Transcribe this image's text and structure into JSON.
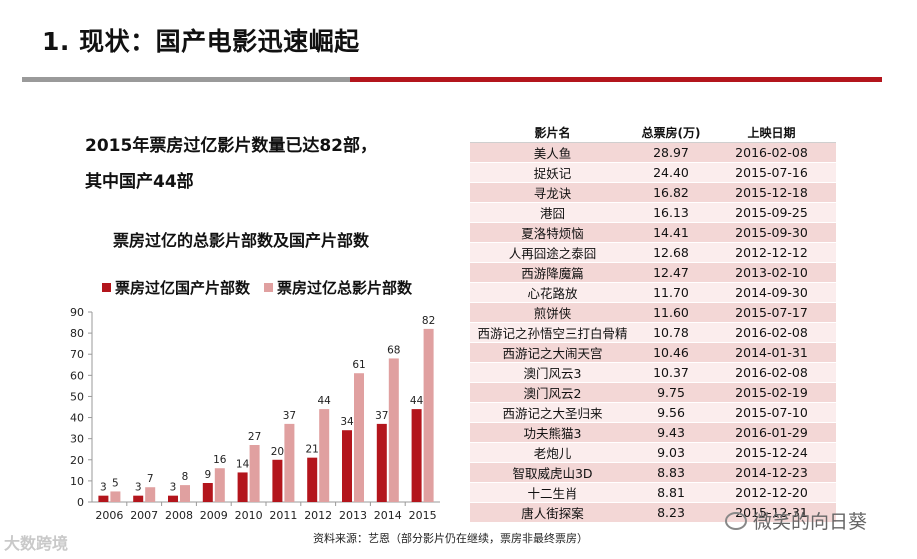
{
  "slide": {
    "title": "1. 现状：国产电影迅速崛起",
    "headline_line1": "2015年票房过亿影片数量已达82部，",
    "headline_line2": "其中国产44部",
    "source": "资料来源：艺恩（部分影片仍在继续，票房非最终票房）",
    "watermark_left": "大数跨境",
    "watermark_right": "微笑的向日葵"
  },
  "colors": {
    "dark_red": "#b3151c",
    "light_red": "#e0a0a0",
    "table_odd": "#f3d7d6",
    "table_even": "#fbeded"
  },
  "chart_data": {
    "type": "bar",
    "title": "票房过亿的总影片部数及国产片部数",
    "categories": [
      "2006",
      "2007",
      "2008",
      "2009",
      "2010",
      "2011",
      "2012",
      "2013",
      "2014",
      "2015"
    ],
    "series": [
      {
        "name": "票房过亿国产片部数",
        "values": [
          3,
          3,
          3,
          9,
          14,
          20,
          21,
          34,
          37,
          44
        ]
      },
      {
        "name": "票房过亿总影片部数",
        "values": [
          5,
          7,
          8,
          16,
          27,
          37,
          44,
          61,
          68,
          82
        ]
      }
    ],
    "ylim": [
      0,
      90
    ],
    "yticks": [
      0,
      10,
      20,
      30,
      40,
      50,
      60,
      70,
      80,
      90
    ],
    "legend": "top",
    "grid": false
  },
  "table": {
    "headers": [
      "影片名",
      "总票房(万)",
      "上映日期"
    ],
    "rows": [
      [
        "美人鱼",
        "28.97",
        "2016-02-08"
      ],
      [
        "捉妖记",
        "24.40",
        "2015-07-16"
      ],
      [
        "寻龙诀",
        "16.82",
        "2015-12-18"
      ],
      [
        "港囧",
        "16.13",
        "2015-09-25"
      ],
      [
        "夏洛特烦恼",
        "14.41",
        "2015-09-30"
      ],
      [
        "人再囧途之泰囧",
        "12.68",
        "2012-12-12"
      ],
      [
        "西游降魔篇",
        "12.47",
        "2013-02-10"
      ],
      [
        "心花路放",
        "11.70",
        "2014-09-30"
      ],
      [
        "煎饼侠",
        "11.60",
        "2015-07-17"
      ],
      [
        "西游记之孙悟空三打白骨精",
        "10.78",
        "2016-02-08"
      ],
      [
        "西游记之大闹天宫",
        "10.46",
        "2014-01-31"
      ],
      [
        "澳门风云3",
        "10.37",
        "2016-02-08"
      ],
      [
        "澳门风云2",
        "9.75",
        "2015-02-19"
      ],
      [
        "西游记之大圣归来",
        "9.56",
        "2015-07-10"
      ],
      [
        "功夫熊猫3",
        "9.43",
        "2016-01-29"
      ],
      [
        "老炮儿",
        "9.03",
        "2015-12-24"
      ],
      [
        "智取威虎山3D",
        "8.83",
        "2014-12-23"
      ],
      [
        "十二生肖",
        "8.81",
        "2012-12-20"
      ],
      [
        "唐人街探案",
        "8.23",
        "2015-12-31"
      ]
    ]
  }
}
